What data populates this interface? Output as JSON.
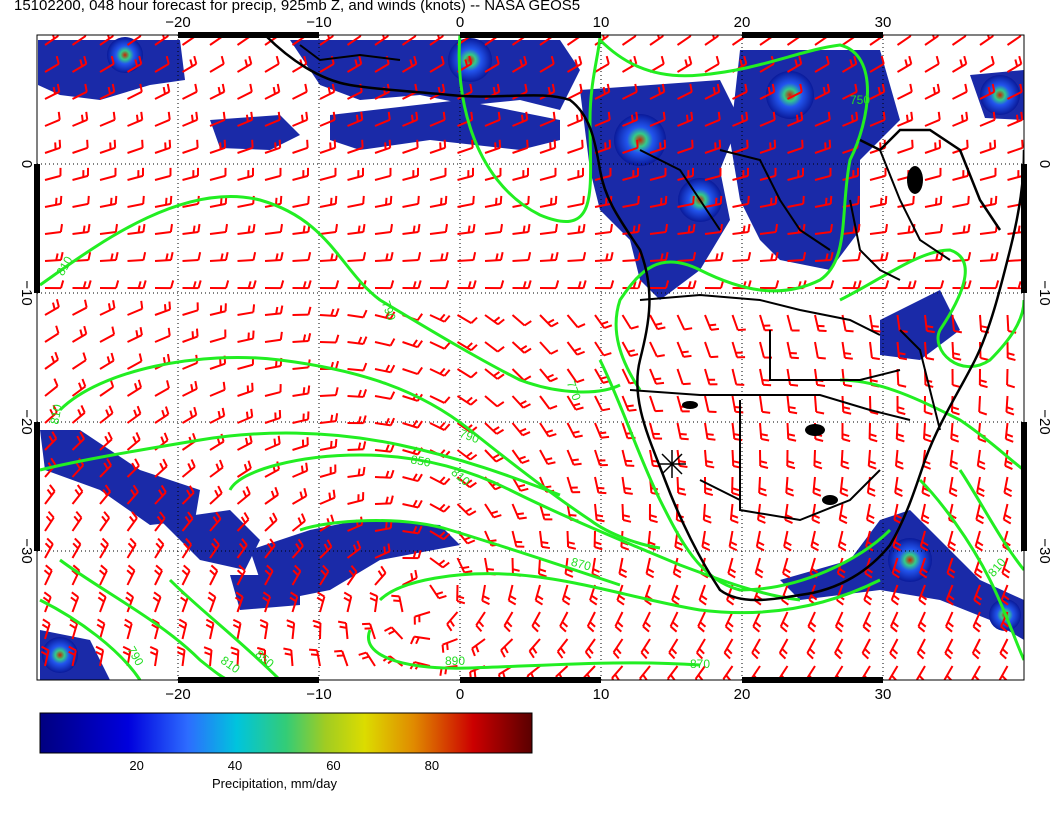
{
  "title": "15102200, 048 hour forecast for precip, 925mb Z, and winds (knots) -- NASA GEOS5",
  "map": {
    "lon_range": [
      -30,
      40
    ],
    "lat_range": [
      -40,
      10
    ],
    "lon_ticks": [
      -20,
      -10,
      0,
      10,
      20,
      30
    ],
    "lat_ticks": [
      0,
      -10,
      -20,
      -30
    ],
    "lon_tick_labels": [
      "−20",
      "−10",
      "0",
      "10",
      "20",
      "30"
    ],
    "lat_tick_labels": [
      "0",
      "−10",
      "−20",
      "−30"
    ],
    "grid": "dotted",
    "colors": {
      "coast": "#000000",
      "contour": "#22ee22",
      "wind_barbs": "#ff0000",
      "contour_label": "#22dd22"
    },
    "contour_labels": [
      "810",
      "790",
      "810",
      "770",
      "790",
      "810",
      "850",
      "870",
      "870",
      "890",
      "810",
      "850",
      "750",
      "790",
      "810"
    ],
    "marker": "star-cross-marker"
  },
  "colorbar": {
    "label": "Precipitation, mm/day",
    "ticks": [
      20,
      40,
      60,
      80
    ],
    "range": [
      0,
      100
    ],
    "stops": [
      "#000088",
      "#0000cc",
      "#1f5fff",
      "#00bbdd",
      "#22cc88",
      "#aacc22",
      "#dddd00",
      "#e08800",
      "#cc0000",
      "#660000"
    ]
  }
}
